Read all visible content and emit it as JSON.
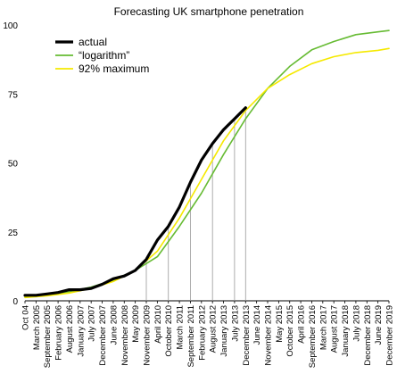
{
  "chart_data": {
    "type": "line",
    "title": "Forecasting UK smartphone penetration",
    "xlabel": "",
    "ylabel": "",
    "ylim": [
      0,
      100
    ],
    "yticks": [
      0,
      25,
      50,
      75,
      100
    ],
    "x_start": "Oct 04",
    "x_end": "December 2019",
    "xtick_labels": [
      "Oct 04",
      "March 2005",
      "September 2005",
      "February 2006",
      "August 2006",
      "January 2007",
      "July 2007",
      "December 2007",
      "June 2008",
      "November 2008",
      "May 2009",
      "November 2009",
      "April 2010",
      "October 2010",
      "March 2011",
      "September 2011",
      "February 2012",
      "August 2012",
      "January 2013",
      "July 2013",
      "December 2013",
      "June 2014",
      "November 2014",
      "May 2015",
      "October 2015",
      "April 2016",
      "September 2016",
      "March 2017",
      "August 2017",
      "January 2018",
      "July 2018",
      "December 2018",
      "June 2019",
      "December 2019"
    ],
    "grid": false,
    "legend_position": "top-left",
    "vertical_markers": [
      "November 2009",
      "October 2010",
      "September 2011",
      "August 2012",
      "July 2013",
      "December 2013"
    ],
    "series": [
      {
        "name": "actual",
        "color": "#000000",
        "x": [
          "Oct 04",
          "March 2005",
          "September 2005",
          "February 2006",
          "August 2006",
          "January 2007",
          "July 2007",
          "December 2007",
          "June 2008",
          "November 2008",
          "May 2009",
          "November 2009",
          "April 2010",
          "October 2010",
          "March 2011",
          "September 2011",
          "February 2012",
          "August 2012",
          "January 2013",
          "July 2013",
          "December 2013"
        ],
        "y": [
          2,
          2,
          2.5,
          3,
          4,
          4,
          4.5,
          6,
          8,
          9,
          11,
          15,
          22,
          27,
          34,
          43,
          51,
          57,
          62,
          66,
          70
        ]
      },
      {
        "name": "“logarithm”",
        "color": "#66bb33",
        "x": [
          "Oct 04",
          "September 2005",
          "August 2006",
          "July 2007",
          "June 2008",
          "May 2009",
          "April 2010",
          "March 2011",
          "February 2012",
          "January 2013",
          "December 2013",
          "November 2014",
          "October 2015",
          "September 2016",
          "August 2017",
          "July 2018",
          "June 2019",
          "December 2019"
        ],
        "y": [
          1.5,
          2.2,
          3.3,
          5,
          7.5,
          11,
          16,
          27,
          39,
          53,
          66,
          77,
          85,
          91,
          94,
          96.5,
          97.5,
          98
        ]
      },
      {
        "name": "92% maximum",
        "color": "#f5e900",
        "x": [
          "Oct 04",
          "September 2005",
          "August 2006",
          "July 2007",
          "June 2008",
          "May 2009",
          "April 2010",
          "March 2011",
          "February 2012",
          "January 2013",
          "December 2013",
          "November 2014",
          "October 2015",
          "September 2016",
          "August 2017",
          "July 2018",
          "June 2019",
          "December 2019"
        ],
        "y": [
          1.2,
          1.8,
          2.8,
          4.5,
          7,
          11,
          18,
          30,
          44,
          58,
          69,
          77,
          82,
          86,
          88.5,
          90,
          90.8,
          91.5
        ]
      }
    ]
  }
}
